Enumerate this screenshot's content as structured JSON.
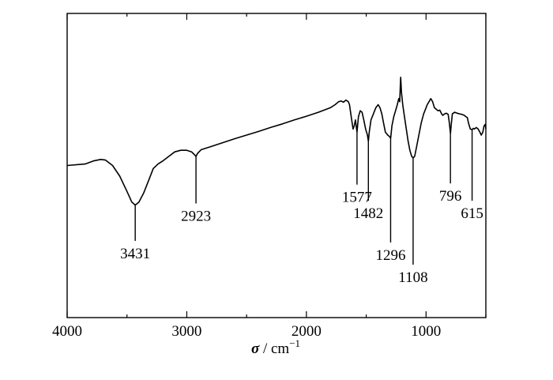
{
  "chart_data": {
    "type": "line",
    "title": "",
    "xlabel": {
      "symbol": "σ",
      "unit": " / cm",
      "exponent": "−1"
    },
    "ylabel": "",
    "xlim": [
      4000,
      500
    ],
    "x_reversed": true,
    "y_range": [
      0,
      1
    ],
    "y_ticks_shown": false,
    "grid": false,
    "legend": "none",
    "x_ticks": [
      {
        "value": 4000,
        "label": "4000"
      },
      {
        "value": 3000,
        "label": "3000"
      },
      {
        "value": 2000,
        "label": "2000"
      },
      {
        "value": 1000,
        "label": "1000"
      }
    ],
    "x_minor_step": 500,
    "series": [
      {
        "color": "#000000",
        "x": [
          4000,
          3850,
          3780,
          3720,
          3680,
          3620,
          3560,
          3500,
          3460,
          3431,
          3400,
          3360,
          3320,
          3280,
          3240,
          3200,
          3150,
          3100,
          3050,
          3000,
          2960,
          2935,
          2923,
          2910,
          2880,
          2800,
          2700,
          2600,
          2500,
          2400,
          2300,
          2200,
          2100,
          2000,
          1900,
          1800,
          1760,
          1730,
          1710,
          1690,
          1670,
          1650,
          1640,
          1625,
          1610,
          1600,
          1590,
          1577,
          1565,
          1550,
          1535,
          1520,
          1505,
          1490,
          1482,
          1475,
          1460,
          1440,
          1420,
          1400,
          1385,
          1370,
          1355,
          1340,
          1320,
          1305,
          1296,
          1285,
          1270,
          1255,
          1240,
          1228,
          1220,
          1215,
          1212,
          1205,
          1195,
          1180,
          1165,
          1150,
          1135,
          1120,
          1108,
          1095,
          1080,
          1060,
          1040,
          1020,
          1000,
          990,
          975,
          960,
          945,
          930,
          915,
          900,
          885,
          870,
          860,
          845,
          830,
          815,
          805,
          796,
          788,
          780,
          760,
          740,
          720,
          700,
          680,
          665,
          655,
          645,
          630,
          615,
          605,
          595,
          580,
          565,
          550,
          538,
          525,
          515,
          505,
          500
        ],
        "y": [
          0.5,
          0.505,
          0.515,
          0.52,
          0.518,
          0.5,
          0.465,
          0.415,
          0.38,
          0.37,
          0.38,
          0.41,
          0.45,
          0.49,
          0.505,
          0.515,
          0.53,
          0.545,
          0.55,
          0.55,
          0.545,
          0.535,
          0.53,
          0.54,
          0.552,
          0.562,
          0.575,
          0.588,
          0.6,
          0.612,
          0.625,
          0.637,
          0.65,
          0.662,
          0.675,
          0.69,
          0.7,
          0.71,
          0.712,
          0.708,
          0.715,
          0.71,
          0.7,
          0.66,
          0.62,
          0.63,
          0.65,
          0.61,
          0.66,
          0.68,
          0.675,
          0.65,
          0.62,
          0.6,
          0.58,
          0.61,
          0.65,
          0.67,
          0.69,
          0.7,
          0.69,
          0.67,
          0.64,
          0.61,
          0.6,
          0.595,
          0.59,
          0.63,
          0.66,
          0.68,
          0.7,
          0.72,
          0.71,
          0.76,
          0.79,
          0.74,
          0.7,
          0.66,
          0.62,
          0.58,
          0.55,
          0.53,
          0.525,
          0.53,
          0.56,
          0.6,
          0.64,
          0.67,
          0.69,
          0.7,
          0.71,
          0.72,
          0.71,
          0.69,
          0.685,
          0.68,
          0.682,
          0.67,
          0.665,
          0.67,
          0.672,
          0.668,
          0.64,
          0.605,
          0.64,
          0.67,
          0.675,
          0.672,
          0.67,
          0.668,
          0.665,
          0.66,
          0.658,
          0.64,
          0.62,
          0.618,
          0.622,
          0.62,
          0.625,
          0.62,
          0.61,
          0.6,
          0.61,
          0.63,
          0.635,
          0.62
        ]
      }
    ],
    "annotations": [
      {
        "label": "3431",
        "x": 3431,
        "y_text": 0.195
      },
      {
        "label": "2923",
        "x": 2923,
        "y_text": 0.318
      },
      {
        "label": "1577",
        "x": 1577,
        "y_text": 0.38
      },
      {
        "label": "1482",
        "x": 1482,
        "y_text": 0.327
      },
      {
        "label": "1296",
        "x": 1296,
        "y_text": 0.19
      },
      {
        "label": "1108",
        "x": 1108,
        "y_text": 0.117
      },
      {
        "label": "796",
        "x": 796,
        "y_text": 0.384
      },
      {
        "label": "615",
        "x": 615,
        "y_text": 0.327
      }
    ]
  }
}
